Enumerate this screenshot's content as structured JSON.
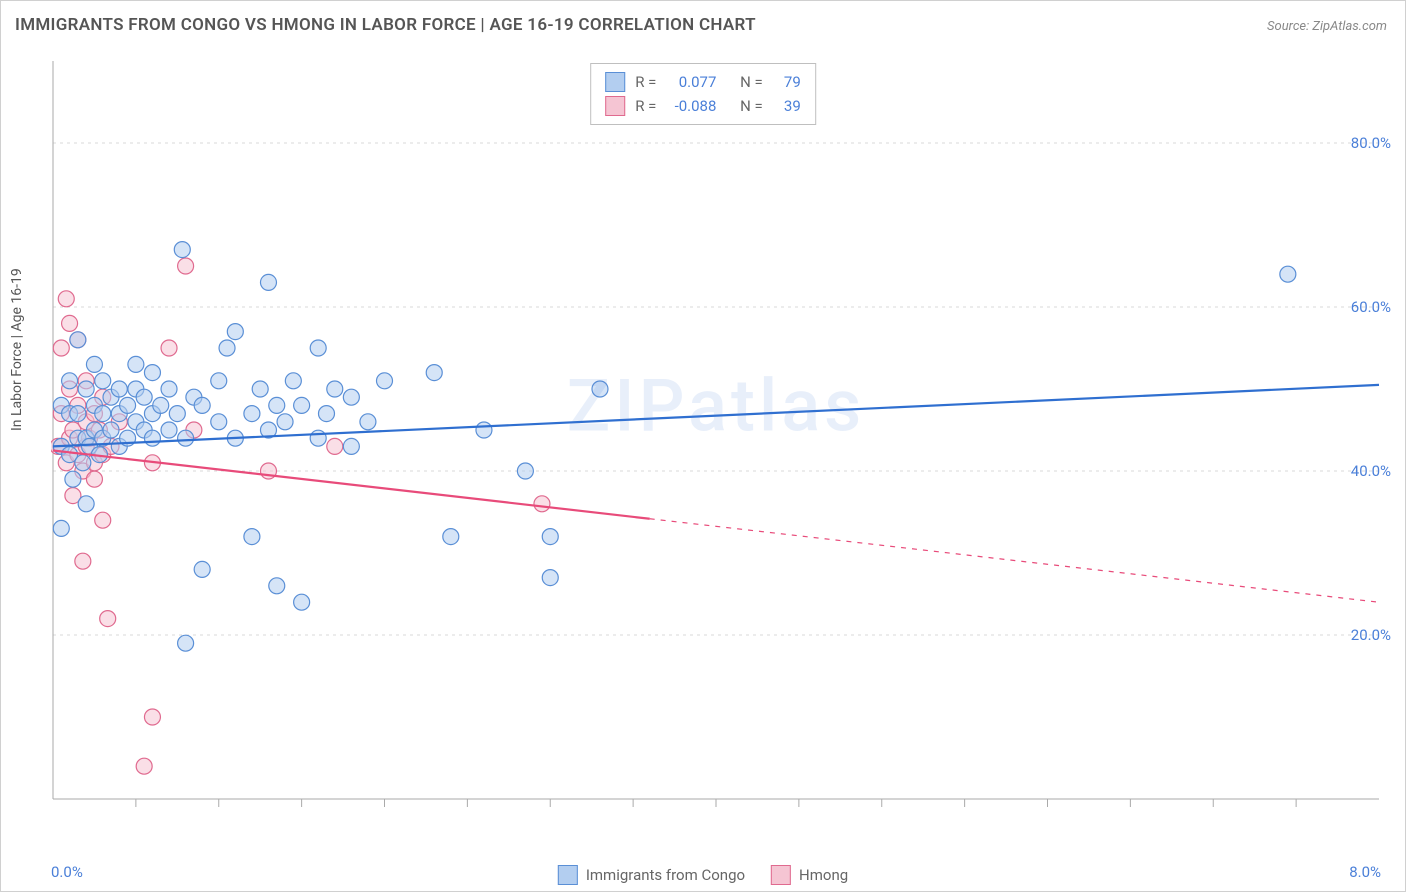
{
  "title": "IMMIGRANTS FROM CONGO VS HMONG IN LABOR FORCE | AGE 16-19 CORRELATION CHART",
  "source": "Source: ZipAtlas.com",
  "watermark": "ZIPatlas",
  "ylabel": "In Labor Force | Age 16-19",
  "chart": {
    "type": "scatter",
    "xlim": [
      0.0,
      8.0
    ],
    "ylim": [
      0.0,
      90.0
    ],
    "x_tick_labels": [
      "0.0%",
      "8.0%"
    ],
    "y_ticks": [
      20.0,
      40.0,
      60.0,
      80.0
    ],
    "y_tick_labels": [
      "20.0%",
      "40.0%",
      "60.0%",
      "80.0%"
    ],
    "grid_color": "#d8d8d8",
    "axis_color": "#aaaaaa",
    "background_color": "#ffffff",
    "marker_radius": 8,
    "marker_opacity": 0.55,
    "series": [
      {
        "name": "Immigrants from Congo",
        "color_fill": "#b3cef0",
        "color_stroke": "#5a8fd6",
        "line_color": "#2f6fd0",
        "line_width": 2.2,
        "r": "0.077",
        "n": "79",
        "trend": {
          "x1": 0.0,
          "y1": 43.0,
          "x2": 8.0,
          "y2": 50.5,
          "dash_from_x": null
        },
        "points": [
          [
            0.05,
            43
          ],
          [
            0.05,
            48
          ],
          [
            0.05,
            33
          ],
          [
            0.1,
            42
          ],
          [
            0.1,
            47
          ],
          [
            0.1,
            51
          ],
          [
            0.12,
            39
          ],
          [
            0.15,
            44
          ],
          [
            0.15,
            47
          ],
          [
            0.15,
            56
          ],
          [
            0.18,
            41
          ],
          [
            0.2,
            44
          ],
          [
            0.2,
            50
          ],
          [
            0.2,
            36
          ],
          [
            0.22,
            43
          ],
          [
            0.25,
            45
          ],
          [
            0.25,
            48
          ],
          [
            0.25,
            53
          ],
          [
            0.28,
            42
          ],
          [
            0.3,
            44
          ],
          [
            0.3,
            47
          ],
          [
            0.3,
            51
          ],
          [
            0.35,
            45
          ],
          [
            0.35,
            49
          ],
          [
            0.4,
            43
          ],
          [
            0.4,
            47
          ],
          [
            0.4,
            50
          ],
          [
            0.45,
            44
          ],
          [
            0.45,
            48
          ],
          [
            0.5,
            46
          ],
          [
            0.5,
            50
          ],
          [
            0.5,
            53
          ],
          [
            0.55,
            45
          ],
          [
            0.55,
            49
          ],
          [
            0.6,
            44
          ],
          [
            0.6,
            47
          ],
          [
            0.6,
            52
          ],
          [
            0.65,
            48
          ],
          [
            0.7,
            45
          ],
          [
            0.7,
            50
          ],
          [
            0.75,
            47
          ],
          [
            0.78,
            67
          ],
          [
            0.8,
            44
          ],
          [
            0.8,
            19
          ],
          [
            0.85,
            49
          ],
          [
            0.9,
            48
          ],
          [
            0.9,
            28
          ],
          [
            1.0,
            46
          ],
          [
            1.0,
            51
          ],
          [
            1.05,
            55
          ],
          [
            1.1,
            44
          ],
          [
            1.1,
            57
          ],
          [
            1.2,
            47
          ],
          [
            1.2,
            32
          ],
          [
            1.25,
            50
          ],
          [
            1.3,
            63
          ],
          [
            1.3,
            45
          ],
          [
            1.35,
            48
          ],
          [
            1.35,
            26
          ],
          [
            1.4,
            46
          ],
          [
            1.45,
            51
          ],
          [
            1.5,
            24
          ],
          [
            1.5,
            48
          ],
          [
            1.6,
            44
          ],
          [
            1.6,
            55
          ],
          [
            1.65,
            47
          ],
          [
            1.7,
            50
          ],
          [
            1.8,
            43
          ],
          [
            1.8,
            49
          ],
          [
            1.9,
            46
          ],
          [
            2.0,
            51
          ],
          [
            2.3,
            52
          ],
          [
            2.4,
            32
          ],
          [
            2.6,
            45
          ],
          [
            2.85,
            40
          ],
          [
            3.0,
            27
          ],
          [
            3.0,
            32
          ],
          [
            3.3,
            50
          ],
          [
            7.45,
            64
          ]
        ]
      },
      {
        "name": "Hmong",
        "color_fill": "#f5c5d3",
        "color_stroke": "#e06a8f",
        "line_color": "#e84b7a",
        "line_width": 2.2,
        "r": "-0.088",
        "n": "39",
        "trend": {
          "x1": 0.0,
          "y1": 42.5,
          "x2": 8.0,
          "y2": 24.0,
          "dash_from_x": 3.6
        },
        "points": [
          [
            0.03,
            43
          ],
          [
            0.05,
            43
          ],
          [
            0.05,
            47
          ],
          [
            0.05,
            55
          ],
          [
            0.08,
            41
          ],
          [
            0.08,
            61
          ],
          [
            0.1,
            44
          ],
          [
            0.1,
            50
          ],
          [
            0.1,
            58
          ],
          [
            0.12,
            45
          ],
          [
            0.12,
            37
          ],
          [
            0.15,
            42
          ],
          [
            0.15,
            48
          ],
          [
            0.15,
            56
          ],
          [
            0.18,
            40
          ],
          [
            0.18,
            29
          ],
          [
            0.2,
            43
          ],
          [
            0.2,
            46
          ],
          [
            0.2,
            51
          ],
          [
            0.22,
            44
          ],
          [
            0.25,
            41
          ],
          [
            0.25,
            47
          ],
          [
            0.25,
            39
          ],
          [
            0.28,
            45
          ],
          [
            0.3,
            42
          ],
          [
            0.3,
            34
          ],
          [
            0.3,
            49
          ],
          [
            0.33,
            22
          ],
          [
            0.35,
            43
          ],
          [
            0.4,
            46
          ],
          [
            0.55,
            4
          ],
          [
            0.6,
            41
          ],
          [
            0.6,
            10
          ],
          [
            0.7,
            55
          ],
          [
            0.8,
            65
          ],
          [
            0.85,
            45
          ],
          [
            1.3,
            40
          ],
          [
            1.7,
            43
          ],
          [
            2.95,
            36
          ]
        ]
      }
    ]
  },
  "stats_legend_label_r": "R =",
  "stats_legend_label_n": "N =",
  "bottom_legend": [
    {
      "label": "Immigrants from Congo",
      "fill": "#b3cef0",
      "stroke": "#5a8fd6"
    },
    {
      "label": "Hmong",
      "fill": "#f5c5d3",
      "stroke": "#e06a8f"
    }
  ]
}
